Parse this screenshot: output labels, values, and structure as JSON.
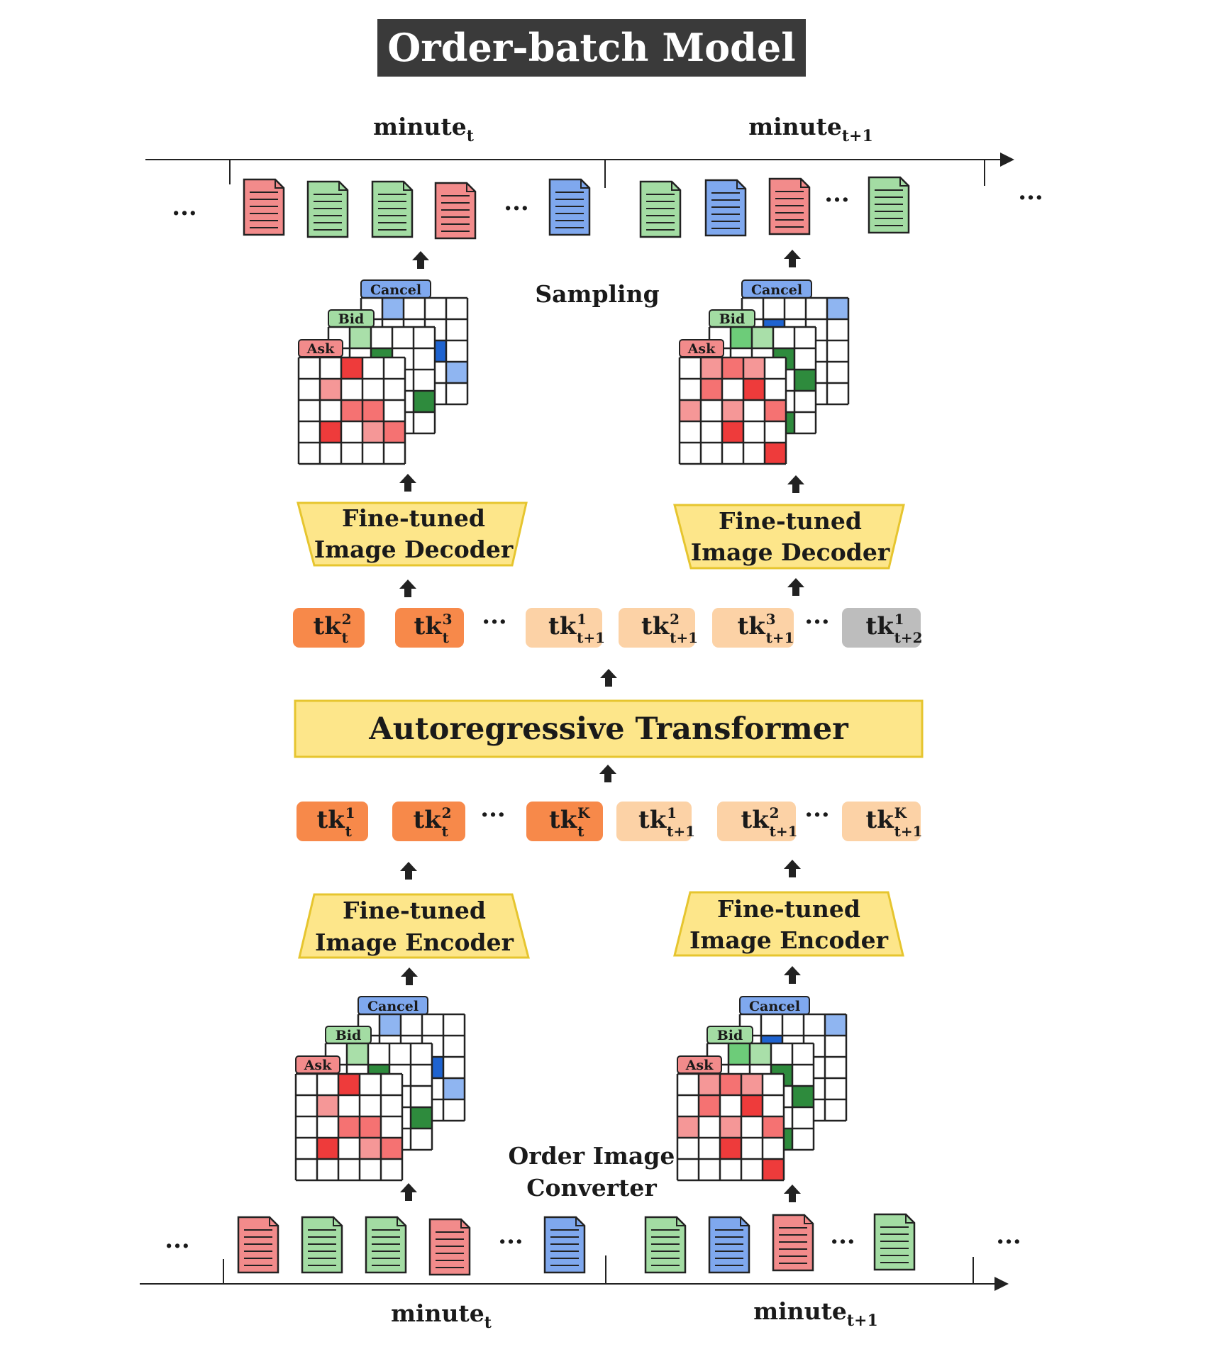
{
  "title": "Order-batch Model",
  "timeline_top": {
    "left_label": {
      "base": "minute",
      "sub": "t"
    },
    "right_label": {
      "base": "minute",
      "sub": "t+1"
    },
    "dots": "···"
  },
  "timeline_bottom": {
    "left_label": {
      "base": "minute",
      "sub": "t"
    },
    "right_label": {
      "base": "minute",
      "sub": "t+1"
    },
    "dots": "···"
  },
  "labels": {
    "sampling": "Sampling",
    "converter_line1": "Order Image",
    "converter_line2": "Converter"
  },
  "layer_labels": {
    "cancel": "Cancel",
    "bid": "Bid",
    "ask": "Ask"
  },
  "decoders": [
    {
      "line1": "Fine-tuned",
      "line2": "Image Decoder"
    },
    {
      "line1": "Fine-tuned",
      "line2": "Image Decoder"
    }
  ],
  "encoders": [
    {
      "line1": "Fine-tuned",
      "line2": "Image Encoder"
    },
    {
      "line1": "Fine-tuned",
      "line2": "Image Encoder"
    }
  ],
  "transformer": "Autoregressive Transformer",
  "tokens_top": [
    {
      "base": "tk",
      "sup": "2",
      "sub": "t",
      "style": "dark"
    },
    {
      "base": "tk",
      "sup": "3",
      "sub": "t",
      "style": "dark"
    },
    {
      "base": "tk",
      "sup": "1",
      "sub": "t+1",
      "style": "light"
    },
    {
      "base": "tk",
      "sup": "2",
      "sub": "t+1",
      "style": "light"
    },
    {
      "base": "tk",
      "sup": "3",
      "sub": "t+1",
      "style": "light"
    },
    {
      "base": "tk",
      "sup": "1",
      "sub": "t+2",
      "style": "gray"
    }
  ],
  "tokens_bottom": [
    {
      "base": "tk",
      "sup": "1",
      "sub": "t",
      "style": "dark"
    },
    {
      "base": "tk",
      "sup": "2",
      "sub": "t",
      "style": "dark"
    },
    {
      "base": "tk",
      "sup": "K",
      "sub": "t",
      "style": "dark"
    },
    {
      "base": "tk",
      "sup": "1",
      "sub": "t+1",
      "style": "light"
    },
    {
      "base": "tk",
      "sup": "2",
      "sub": "t+1",
      "style": "light"
    },
    {
      "base": "tk",
      "sup": "K",
      "sub": "t+1",
      "style": "light"
    }
  ],
  "docs_top": [
    "red",
    "green",
    "green",
    "red",
    "blue",
    "green",
    "blue",
    "red",
    "green"
  ],
  "docs_bottom": [
    "red",
    "green",
    "green",
    "red",
    "blue",
    "green",
    "blue",
    "red",
    "green"
  ],
  "colors": {
    "doc_red": "#f28b8b",
    "doc_green": "#a3dca3",
    "doc_blue": "#7fa8ee",
    "token_dark": "#f7894a",
    "token_light": "#fcd2a6",
    "token_gray": "#bdbdbd",
    "box_fill": "#fde68a",
    "box_border": "#e6c52f",
    "title_bg": "#3a3a3a",
    "ask_tab": "#f28b8b",
    "bid_tab": "#a3dca3",
    "cancel_tab": "#7fa8ee",
    "red_strong": "#ee3b3b",
    "red_soft": "#f59797",
    "red_mid": "#f57272",
    "green_strong": "#2e8b3d",
    "green_soft": "#a9dfa9",
    "green_mid": "#6dcc79",
    "blue_strong": "#1e63d0",
    "blue_soft": "#8fb5f1"
  }
}
